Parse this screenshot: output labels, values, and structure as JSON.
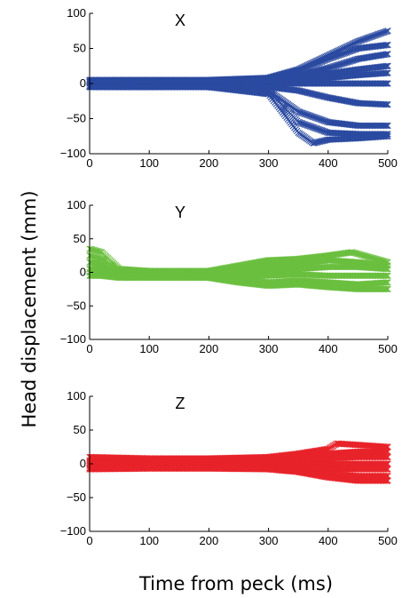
{
  "figure": {
    "ylabel": "Head displacement (mm)",
    "xlabel": "Time from peck (ms)"
  },
  "chart_data": [
    {
      "type": "scatter",
      "title": "X",
      "marker": "x",
      "color": "#2b4aa0",
      "xlim": [
        0,
        500
      ],
      "ylim": [
        -100,
        100
      ],
      "xticks": [
        0,
        100,
        200,
        300,
        400,
        500
      ],
      "yticks": [
        -100,
        -50,
        0,
        50,
        100
      ],
      "xtick_labels": [
        "0",
        "100",
        "200",
        "300",
        "400",
        "500"
      ],
      "ytick_labels": [
        "−100",
        "−50",
        "0",
        "50",
        "100"
      ],
      "grid": false,
      "series": [
        {
          "values": [
            [
              0,
              0
            ],
            [
              50,
              0
            ],
            [
              100,
              0
            ],
            [
              200,
              0
            ],
            [
              300,
              0
            ],
            [
              350,
              0
            ],
            [
              400,
              0
            ],
            [
              450,
              0
            ],
            [
              500,
              0
            ]
          ]
        },
        {
          "values": [
            [
              0,
              5
            ],
            [
              100,
              5
            ],
            [
              200,
              5
            ],
            [
              300,
              8
            ],
            [
              350,
              20
            ],
            [
              400,
              40
            ],
            [
              450,
              60
            ],
            [
              500,
              75
            ]
          ]
        },
        {
          "values": [
            [
              0,
              5
            ],
            [
              100,
              5
            ],
            [
              200,
              5
            ],
            [
              300,
              8
            ],
            [
              350,
              18
            ],
            [
              400,
              35
            ],
            [
              450,
              50
            ],
            [
              500,
              55
            ]
          ]
        },
        {
          "values": [
            [
              0,
              3
            ],
            [
              100,
              3
            ],
            [
              200,
              3
            ],
            [
              300,
              5
            ],
            [
              350,
              12
            ],
            [
              400,
              22
            ],
            [
              450,
              35
            ],
            [
              500,
              42
            ]
          ]
        },
        {
          "values": [
            [
              0,
              2
            ],
            [
              100,
              2
            ],
            [
              200,
              2
            ],
            [
              300,
              4
            ],
            [
              350,
              8
            ],
            [
              400,
              14
            ],
            [
              450,
              20
            ],
            [
              500,
              25
            ]
          ]
        },
        {
          "values": [
            [
              0,
              2
            ],
            [
              100,
              2
            ],
            [
              200,
              2
            ],
            [
              300,
              3
            ],
            [
              350,
              5
            ],
            [
              400,
              8
            ],
            [
              450,
              12
            ],
            [
              500,
              15
            ]
          ]
        },
        {
          "values": [
            [
              0,
              -3
            ],
            [
              100,
              -3
            ],
            [
              200,
              -3
            ],
            [
              300,
              -5
            ],
            [
              350,
              -10
            ],
            [
              400,
              -20
            ],
            [
              450,
              -28
            ],
            [
              500,
              -30
            ]
          ]
        },
        {
          "values": [
            [
              0,
              -5
            ],
            [
              100,
              -5
            ],
            [
              200,
              -5
            ],
            [
              300,
              -10
            ],
            [
              350,
              -40
            ],
            [
              400,
              -55
            ],
            [
              450,
              -60
            ],
            [
              500,
              -60
            ]
          ]
        },
        {
          "values": [
            [
              0,
              -5
            ],
            [
              100,
              -5
            ],
            [
              200,
              -5
            ],
            [
              300,
              -10
            ],
            [
              350,
              -55
            ],
            [
              400,
              -70
            ],
            [
              450,
              -72
            ],
            [
              500,
              -72
            ]
          ]
        },
        {
          "values": [
            [
              0,
              -5
            ],
            [
              100,
              -5
            ],
            [
              200,
              -5
            ],
            [
              300,
              -15
            ],
            [
              350,
              -70
            ],
            [
              375,
              -85
            ],
            [
              400,
              -80
            ],
            [
              450,
              -78
            ],
            [
              500,
              -75
            ]
          ]
        }
      ]
    },
    {
      "type": "scatter",
      "title": "Y",
      "marker": "x",
      "color": "#6abf3f",
      "xlim": [
        0,
        500
      ],
      "ylim": [
        -100,
        100
      ],
      "xticks": [
        0,
        100,
        200,
        300,
        400,
        500
      ],
      "yticks": [
        -100,
        -50,
        0,
        50,
        100
      ],
      "xtick_labels": [
        "0",
        "100",
        "200",
        "300",
        "400",
        "500"
      ],
      "ytick_labels": [
        "−100",
        "−50",
        "0",
        "50",
        "100"
      ],
      "grid": false,
      "series": [
        {
          "values": [
            [
              0,
              35
            ],
            [
              20,
              30
            ],
            [
              50,
              5
            ],
            [
              100,
              2
            ],
            [
              200,
              2
            ],
            [
              250,
              10
            ],
            [
              300,
              18
            ],
            [
              350,
              20
            ],
            [
              400,
              25
            ],
            [
              440,
              30
            ],
            [
              500,
              15
            ]
          ]
        },
        {
          "values": [
            [
              0,
              25
            ],
            [
              20,
              20
            ],
            [
              50,
              3
            ],
            [
              100,
              1
            ],
            [
              200,
              1
            ],
            [
              250,
              5
            ],
            [
              300,
              10
            ],
            [
              350,
              12
            ],
            [
              400,
              18
            ],
            [
              450,
              15
            ],
            [
              500,
              10
            ]
          ]
        },
        {
          "values": [
            [
              0,
              15
            ],
            [
              20,
              12
            ],
            [
              50,
              0
            ],
            [
              100,
              0
            ],
            [
              200,
              0
            ],
            [
              250,
              0
            ],
            [
              300,
              3
            ],
            [
              350,
              5
            ],
            [
              400,
              8
            ],
            [
              450,
              8
            ],
            [
              500,
              5
            ]
          ]
        },
        {
          "values": [
            [
              0,
              5
            ],
            [
              20,
              5
            ],
            [
              50,
              -2
            ],
            [
              100,
              -2
            ],
            [
              200,
              -2
            ],
            [
              250,
              -5
            ],
            [
              300,
              -5
            ],
            [
              350,
              -3
            ],
            [
              400,
              -5
            ],
            [
              450,
              -5
            ],
            [
              500,
              -5
            ]
          ]
        },
        {
          "values": [
            [
              0,
              0
            ],
            [
              20,
              0
            ],
            [
              50,
              -5
            ],
            [
              100,
              -5
            ],
            [
              200,
              -5
            ],
            [
              250,
              -10
            ],
            [
              300,
              -15
            ],
            [
              350,
              -12
            ],
            [
              400,
              -15
            ],
            [
              450,
              -18
            ],
            [
              500,
              -15
            ]
          ]
        },
        {
          "values": [
            [
              0,
              -5
            ],
            [
              20,
              -5
            ],
            [
              50,
              -8
            ],
            [
              100,
              -8
            ],
            [
              200,
              -8
            ],
            [
              250,
              -15
            ],
            [
              300,
              -20
            ],
            [
              350,
              -18
            ],
            [
              400,
              -22
            ],
            [
              450,
              -25
            ],
            [
              500,
              -25
            ]
          ]
        }
      ]
    },
    {
      "type": "scatter",
      "title": "Z",
      "marker": "x",
      "color": "#e8232a",
      "xlim": [
        0,
        500
      ],
      "ylim": [
        -100,
        100
      ],
      "xticks": [
        0,
        100,
        200,
        300,
        400,
        500
      ],
      "yticks": [
        -100,
        -50,
        0,
        50,
        100
      ],
      "xtick_labels": [
        "0",
        "100",
        "200",
        "300",
        "400",
        "500"
      ],
      "ytick_labels": [
        "−100",
        "−50",
        "0",
        "50",
        "100"
      ],
      "grid": false,
      "series": [
        {
          "values": [
            [
              0,
              10
            ],
            [
              100,
              8
            ],
            [
              200,
              8
            ],
            [
              300,
              10
            ],
            [
              350,
              15
            ],
            [
              400,
              22
            ],
            [
              415,
              30
            ],
            [
              450,
              28
            ],
            [
              500,
              25
            ]
          ]
        },
        {
          "values": [
            [
              0,
              5
            ],
            [
              100,
              5
            ],
            [
              200,
              5
            ],
            [
              300,
              6
            ],
            [
              350,
              10
            ],
            [
              400,
              15
            ],
            [
              450,
              18
            ],
            [
              500,
              18
            ]
          ]
        },
        {
          "values": [
            [
              0,
              2
            ],
            [
              100,
              2
            ],
            [
              200,
              2
            ],
            [
              300,
              3
            ],
            [
              350,
              5
            ],
            [
              400,
              8
            ],
            [
              450,
              10
            ],
            [
              500,
              10
            ]
          ]
        },
        {
          "values": [
            [
              0,
              0
            ],
            [
              100,
              0
            ],
            [
              200,
              0
            ],
            [
              300,
              0
            ],
            [
              350,
              0
            ],
            [
              400,
              0
            ],
            [
              450,
              0
            ],
            [
              500,
              0
            ]
          ]
        },
        {
          "values": [
            [
              0,
              -3
            ],
            [
              100,
              -2
            ],
            [
              200,
              -2
            ],
            [
              300,
              -3
            ],
            [
              350,
              -5
            ],
            [
              400,
              -8
            ],
            [
              450,
              -8
            ],
            [
              500,
              -8
            ]
          ]
        },
        {
          "values": [
            [
              0,
              -6
            ],
            [
              100,
              -5
            ],
            [
              200,
              -5
            ],
            [
              300,
              -6
            ],
            [
              350,
              -10
            ],
            [
              400,
              -15
            ],
            [
              450,
              -18
            ],
            [
              500,
              -18
            ]
          ]
        },
        {
          "values": [
            [
              0,
              -8
            ],
            [
              100,
              -7
            ],
            [
              200,
              -7
            ],
            [
              300,
              -8
            ],
            [
              350,
              -12
            ],
            [
              400,
              -20
            ],
            [
              450,
              -25
            ],
            [
              500,
              -25
            ]
          ]
        }
      ]
    }
  ]
}
